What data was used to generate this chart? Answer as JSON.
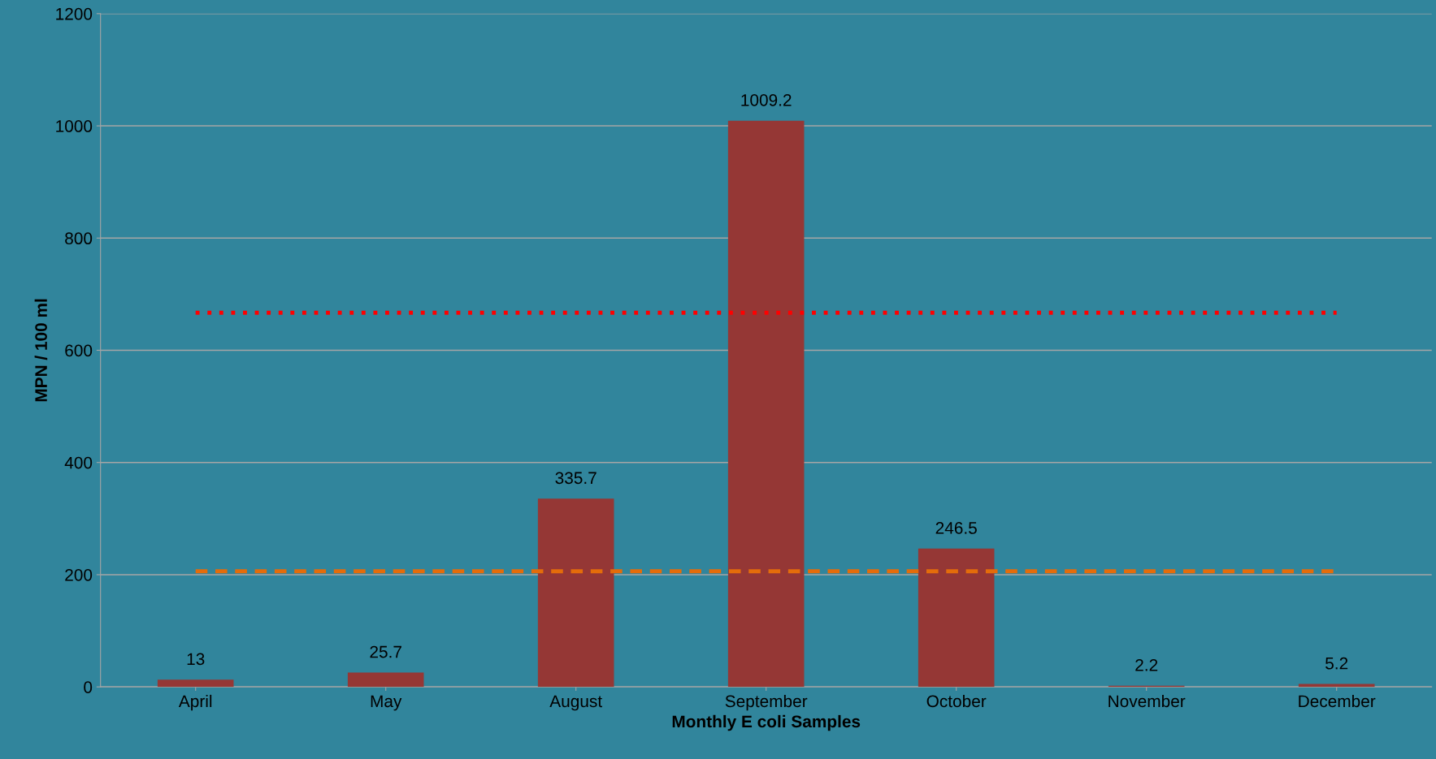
{
  "chart_data": {
    "type": "bar",
    "xlabel": "Monthly E coli Samples",
    "ylabel": "MPN / 100 ml",
    "categories": [
      "April",
      "May",
      "August",
      "September",
      "October",
      "November",
      "December"
    ],
    "values": [
      13,
      25.7,
      335.7,
      1009.2,
      246.5,
      2.2,
      5.2
    ],
    "color": "#953735",
    "ylim": [
      0,
      1200
    ],
    "yticks": [
      0,
      200,
      400,
      600,
      800,
      1000,
      1200
    ],
    "grid": "y",
    "data_labels": true,
    "ref_lines": [
      {
        "axis": "y",
        "value": 667,
        "color": "#ff0000",
        "line_style": "dotted"
      },
      {
        "axis": "y",
        "value": 206,
        "color": "#e46c0a",
        "line_style": "dashed"
      }
    ]
  }
}
